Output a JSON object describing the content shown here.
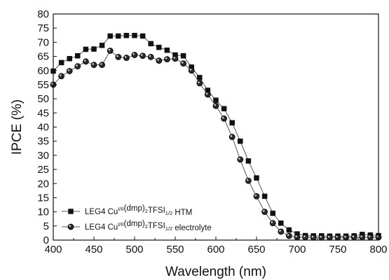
{
  "chart_data": {
    "type": "line",
    "title": "",
    "xlabel": "Wavelength (nm)",
    "ylabel": "IPCE (%)",
    "xlim": [
      400,
      800
    ],
    "ylim": [
      0,
      80
    ],
    "xticks": [
      400,
      450,
      500,
      550,
      600,
      650,
      700,
      750,
      800
    ],
    "yticks": [
      0,
      5,
      10,
      15,
      20,
      25,
      30,
      35,
      40,
      45,
      50,
      55,
      60,
      65,
      70,
      75,
      80
    ],
    "grid": false,
    "legend_position": "bottom-left",
    "series": [
      {
        "name_parts": {
          "prefix": "LEG4 Cu",
          "sup": "I/II",
          "mid1": "(dmp)",
          "sub1": "2",
          "mid2": "TFSI",
          "sub2": "1/2",
          "suffix": " HTM"
        },
        "marker": "square",
        "color": "#111111",
        "x": [
          400,
          410,
          420,
          430,
          440,
          450,
          460,
          470,
          480,
          490,
          500,
          510,
          520,
          530,
          540,
          550,
          560,
          570,
          580,
          590,
          600,
          610,
          620,
          630,
          640,
          650,
          660,
          670,
          680,
          690,
          700,
          710,
          720,
          730,
          740,
          750,
          760,
          770,
          780,
          790,
          800
        ],
        "y": [
          59.8,
          62.8,
          64.2,
          65.2,
          67.5,
          67.6,
          68.9,
          72.2,
          72.2,
          72.4,
          72.4,
          72.2,
          69.5,
          68.2,
          67.2,
          65.5,
          65.2,
          61.2,
          57.5,
          53.0,
          49.5,
          46.5,
          41.5,
          35.0,
          28.0,
          22.0,
          15.5,
          9.5,
          6.0,
          3.6,
          2.2,
          1.6,
          1.5,
          1.5,
          1.4,
          1.4,
          1.4,
          1.5,
          2.0,
          1.8,
          1.6
        ]
      },
      {
        "name_parts": {
          "prefix": "LEG4 Cu",
          "sup": "I/II",
          "mid1": "(dmp)",
          "sub1": "2",
          "mid2": "TFSI",
          "sub2": "1/2",
          "suffix": " electrolyte"
        },
        "marker": "circle",
        "color": "#111111",
        "x": [
          400,
          410,
          420,
          430,
          440,
          450,
          460,
          470,
          480,
          490,
          500,
          510,
          520,
          530,
          540,
          550,
          560,
          570,
          580,
          590,
          600,
          610,
          620,
          630,
          640,
          650,
          660,
          670,
          680,
          690,
          700,
          710,
          720,
          730,
          740,
          750,
          760,
          770,
          780,
          790,
          800
        ],
        "y": [
          55.0,
          58.0,
          59.8,
          61.5,
          63.2,
          62.0,
          62.0,
          67.0,
          64.8,
          64.5,
          65.5,
          65.2,
          64.8,
          63.5,
          64.0,
          64.2,
          62.5,
          60.0,
          55.5,
          51.5,
          47.5,
          43.0,
          36.5,
          28.5,
          21.0,
          15.5,
          10.0,
          6.0,
          3.0,
          1.5,
          1.0,
          1.0,
          0.9,
          0.9,
          0.9,
          0.9,
          0.9,
          1.0,
          1.0,
          1.0,
          1.0
        ]
      }
    ]
  }
}
